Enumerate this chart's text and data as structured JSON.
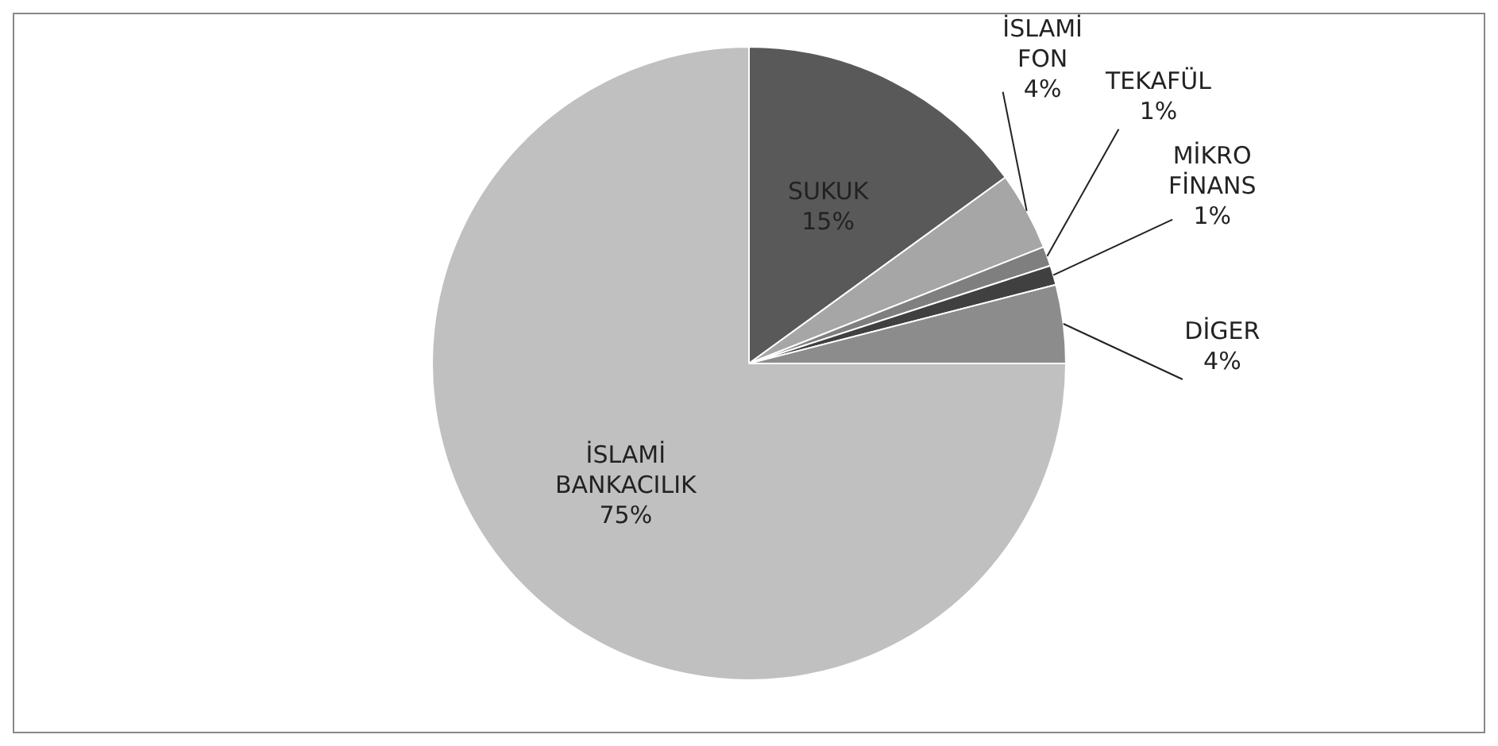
{
  "chart_data": {
    "type": "pie",
    "categories": [
      "SUKUK",
      "İSLAMİ FON",
      "TEKAFÜL",
      "MİKRO FİNANS",
      "DİGER",
      "İSLAMİ BANKACILIK"
    ],
    "values": [
      15,
      4,
      1,
      1,
      4,
      75
    ],
    "value_labels": [
      "15%",
      "4%",
      "1%",
      "1%",
      "4%",
      "75%"
    ],
    "colors": [
      "#595959",
      "#a6a6a6",
      "#7f7f7f",
      "#404040",
      "#8c8c8c",
      "#c0c0c0"
    ]
  }
}
